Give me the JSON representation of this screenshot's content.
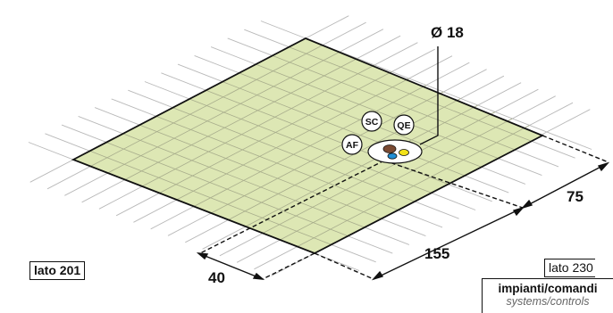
{
  "diameter_label": "Ø 18",
  "dimensions": {
    "d40": "40",
    "d155": "155",
    "d75": "75"
  },
  "badges": {
    "sc": "SC",
    "qe": "QE",
    "af": "AF"
  },
  "side_labels": {
    "left": "lato 201",
    "right": "lato 230"
  },
  "legend": {
    "line1": "impianti/comandi",
    "line2": "systems/controls"
  },
  "colors": {
    "platform_fill": "#dde7b4",
    "grid_line": "#b9b9b9",
    "outline": "#111111",
    "hole_brown": "#7a4a32",
    "hole_blue": "#1f8fd6",
    "hole_yellow": "#f2e21a"
  }
}
